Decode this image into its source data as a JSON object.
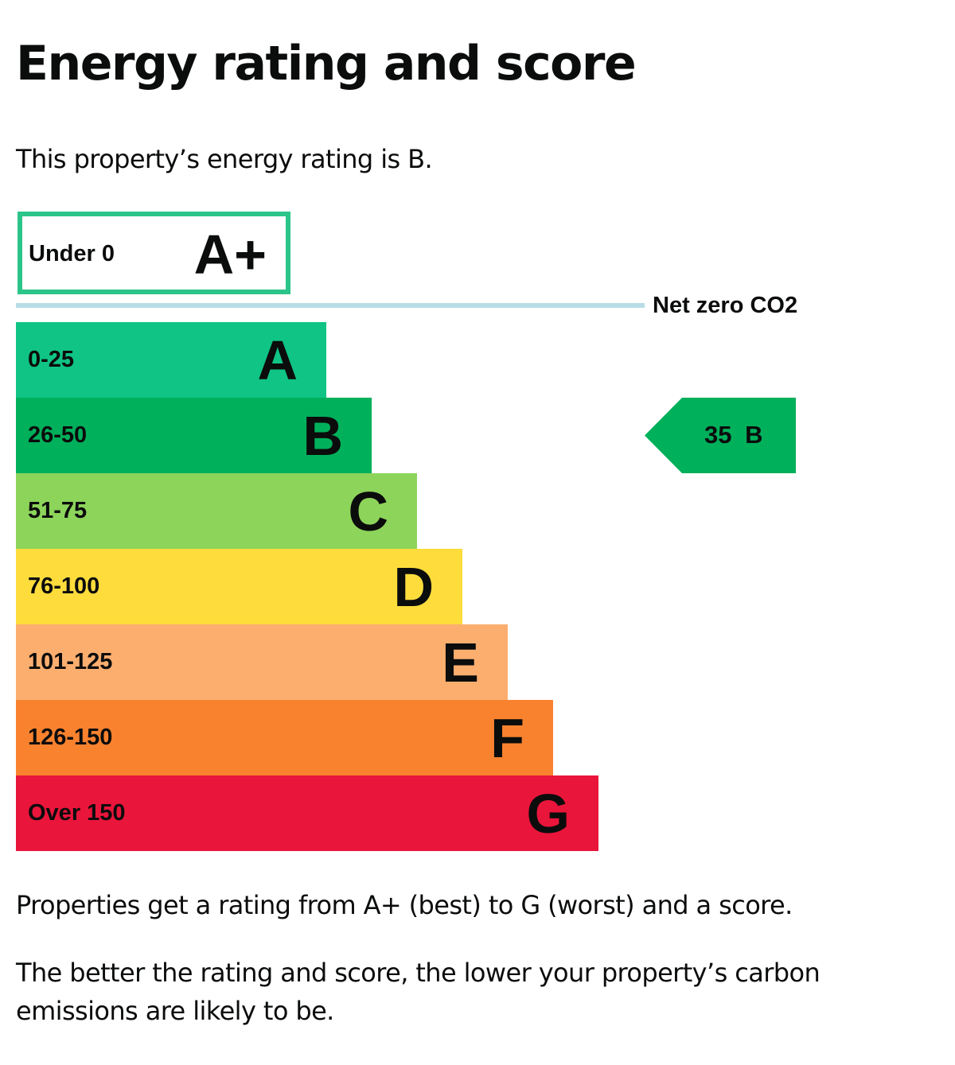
{
  "heading": "Energy rating and score",
  "intro": "This property’s energy rating is B.",
  "chart": {
    "aplus": {
      "range": "Under 0",
      "letter": "A+",
      "color": "#2bc58a"
    },
    "net_zero_label": "Net zero CO2",
    "bands": [
      {
        "range": "0-25",
        "letter": "A",
        "color": "#0fc485"
      },
      {
        "range": "26-50",
        "letter": "B",
        "color": "#00b05b"
      },
      {
        "range": "51-75",
        "letter": "C",
        "color": "#8dd45a"
      },
      {
        "range": "76-100",
        "letter": "D",
        "color": "#fddc3c"
      },
      {
        "range": "101-125",
        "letter": "E",
        "color": "#fcae6f"
      },
      {
        "range": "126-150",
        "letter": "F",
        "color": "#f9822f"
      },
      {
        "range": "Over 150",
        "letter": "G",
        "color": "#e9153b"
      }
    ],
    "current": {
      "score": "35",
      "letter": "B",
      "text": "35 B",
      "color": "#00b05b"
    }
  },
  "notes": [
    "Properties get a rating from A+ (best) to G (worst) and a score.",
    "The better the rating and score, the lower your property’s carbon emissions are likely to be."
  ]
}
